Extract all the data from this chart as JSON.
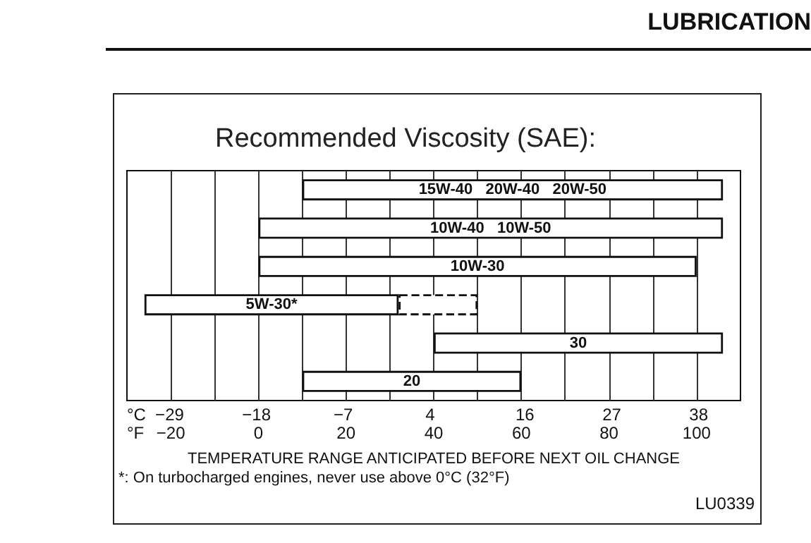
{
  "chart_data": {
    "type": "bar",
    "orientation": "horizontal",
    "title": "Recommended Viscosity (SAE):",
    "xlabel": "TEMPERATURE RANGE ANTICIPATED BEFORE NEXT OIL CHANGE",
    "annotations": [
      "LUBRICATION",
      "*: On turbocharged engines, never use above 0°C (32°F)",
      "LU0339",
      "°C",
      "°F"
    ],
    "categories": [
      "15W-40   20W-40   20W-50",
      "10W-40   10W-50",
      "10W-30",
      "5W-30*",
      "30",
      "20"
    ],
    "series": [
      {
        "color": "#ffffff",
        "base": [
          10,
          0,
          0,
          -26,
          40,
          10
        ],
        "values": [
          96,
          106,
          100,
          58,
          66,
          50
        ],
        "line_style": "solid"
      },
      {
        "color": "#ffffff",
        "base": [
          null,
          null,
          null,
          32,
          null,
          null
        ],
        "values": [
          null,
          null,
          null,
          18,
          null,
          null
        ],
        "line_style": "dashed"
      }
    ],
    "xlim": [
      -30,
      110
    ],
    "xticks": [
      -20,
      {
        "value": -10,
        "label": null
      },
      0,
      {
        "value": 10,
        "label": null
      },
      20,
      {
        "value": 30,
        "label": null
      },
      40,
      {
        "value": 50,
        "label": null
      },
      60,
      {
        "value": 70,
        "label": null
      },
      80,
      {
        "value": 90,
        "label": null
      },
      100
    ],
    "x2lim": [
      -34.4,
      43.3
    ],
    "x2ticks": [
      -29,
      -18,
      -7,
      4,
      16,
      27,
      38
    ],
    "grid": "x",
    "tick_labels": "x"
  }
}
